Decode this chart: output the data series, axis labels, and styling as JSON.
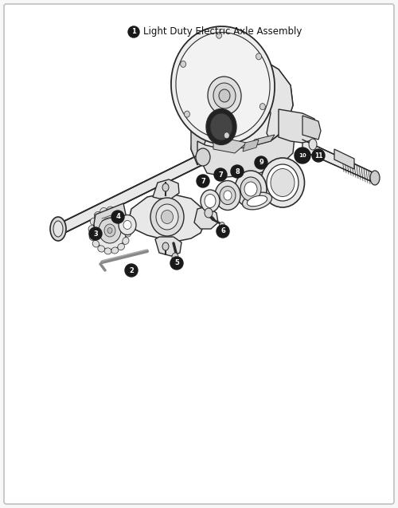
{
  "background_color": "#f7f7f7",
  "border_color": "#c0c0c0",
  "line_color": "#2a2a2a",
  "fill_light": "#f0f0f0",
  "fill_mid": "#e0e0e0",
  "fill_dark": "#c8c8c8",
  "badge_color": "#1a1a1a",
  "badge_text_color": "#ffffff",
  "part_label": "Light Duty Electric Axle Assembly",
  "figsize": [
    5.0,
    6.37
  ],
  "dpi": 100
}
